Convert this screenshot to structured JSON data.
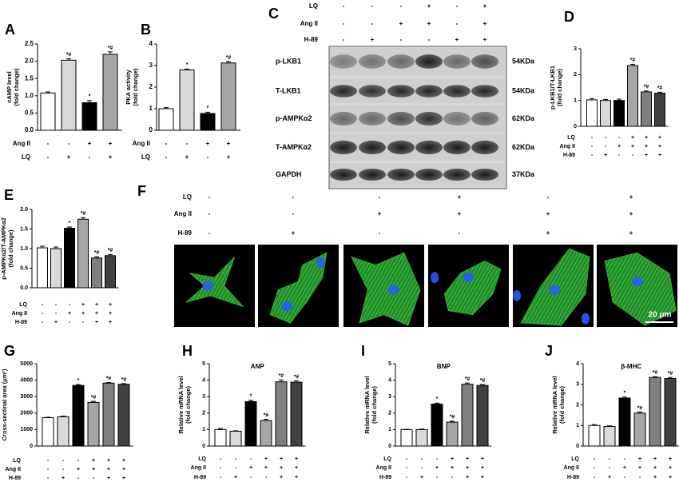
{
  "chart_data": [
    {
      "type": "bar",
      "panel": "A",
      "ylabel": [
        "cAMP level",
        "(fold change)"
      ],
      "ylim": [
        0,
        2.5
      ],
      "yticks": [
        {
          "value": 0,
          "label": "0.0"
        },
        0.5,
        {
          "value": 1,
          "label": "1.0"
        },
        1.5,
        {
          "value": 2,
          "label": "2.0"
        },
        2.5
      ],
      "values": [
        1.08,
        2.03,
        0.8,
        2.2
      ],
      "errors": [
        0.03,
        0.04,
        0.06,
        0.07
      ],
      "colors": [
        "#ffffff",
        "#d9d9d9",
        "#000000",
        "#a6a6a6"
      ],
      "significance": [
        null,
        "*#",
        "*",
        "*#"
      ],
      "conditions": [
        {
          "name": "Ang II",
          "signs": [
            "-",
            "-",
            "+",
            "+"
          ]
        },
        {
          "name": "LQ",
          "signs": [
            "-",
            "+",
            "-",
            "+"
          ]
        }
      ]
    },
    {
      "type": "bar",
      "panel": "B",
      "ylabel": [
        "PKA activity",
        "(fold change)"
      ],
      "ylim": [
        0,
        4
      ],
      "yticks": [
        0,
        1,
        2,
        3,
        4
      ],
      "values": [
        1.0,
        2.8,
        0.78,
        3.12
      ],
      "errors": [
        0.05,
        0.04,
        0.06,
        0.06
      ],
      "colors": [
        "#ffffff",
        "#d9d9d9",
        "#000000",
        "#a6a6a6"
      ],
      "significance": [
        null,
        "*",
        "*",
        "*#"
      ],
      "conditions": [
        {
          "name": "Ang II",
          "signs": [
            "-",
            "-",
            "+",
            "+"
          ]
        },
        {
          "name": "LQ",
          "signs": [
            "-",
            "+",
            "-",
            "+"
          ]
        }
      ]
    },
    {
      "type": "bar",
      "panel": "D",
      "ylabel": [
        "p-LKB1/T-LKB1",
        "(fold change)"
      ],
      "ylim": [
        0,
        3
      ],
      "yticks": [
        0,
        1,
        2,
        3
      ],
      "values": [
        1.02,
        1.0,
        1.0,
        2.35,
        1.33,
        1.28
      ],
      "errors": [
        0.05,
        0.04,
        0.05,
        0.05,
        0.04,
        0.04
      ],
      "colors": [
        "#ffffff",
        "#d9d9d9",
        "#000000",
        "#a6a6a6",
        "#7f7f7f",
        "#404040"
      ],
      "significance": [
        null,
        null,
        null,
        "*#",
        "*#",
        "*#"
      ],
      "conditions": [
        {
          "name": "LQ",
          "signs": [
            "-",
            "-",
            "-",
            "+",
            "+",
            "+"
          ]
        },
        {
          "name": "Ang II",
          "signs": [
            "-",
            "-",
            "+",
            "+",
            "+",
            "+"
          ]
        },
        {
          "name": "H-89",
          "signs": [
            "-",
            "+",
            "-",
            "-",
            "+",
            "+"
          ]
        }
      ]
    },
    {
      "type": "bar",
      "panel": "E",
      "ylabel": [
        "p-AMPKα2/T-AMPKα2",
        "(fold change)"
      ],
      "ylim": [
        0,
        2
      ],
      "yticks": [
        {
          "value": 0,
          "label": "0.0"
        },
        0.5,
        {
          "value": 1,
          "label": "1.0"
        },
        1.5,
        {
          "value": 2,
          "label": "2.0"
        }
      ],
      "values": [
        1.02,
        1.0,
        1.52,
        1.75,
        0.76,
        0.82
      ],
      "errors": [
        0.04,
        0.04,
        0.03,
        0.04,
        0.03,
        0.03
      ],
      "colors": [
        "#ffffff",
        "#d9d9d9",
        "#000000",
        "#a6a6a6",
        "#7f7f7f",
        "#404040"
      ],
      "significance": [
        null,
        null,
        "*",
        "*#",
        "*#",
        "*#"
      ],
      "conditions": [
        {
          "name": "LQ",
          "signs": [
            "-",
            "-",
            "-",
            "+",
            "+",
            "+"
          ]
        },
        {
          "name": "Ang II",
          "signs": [
            "-",
            "-",
            "+",
            "+",
            "+",
            "+"
          ]
        },
        {
          "name": "H-89",
          "signs": [
            "-",
            "+",
            "-",
            "-",
            "+",
            "+"
          ]
        }
      ]
    },
    {
      "type": "bar",
      "panel": "G",
      "ylabel": [
        "Cross-sectinal area (μm²)"
      ],
      "ylim": [
        0,
        5000
      ],
      "yticks": [
        0,
        1000,
        2000,
        3000,
        4000,
        5000
      ],
      "values": [
        1720,
        1780,
        3680,
        2650,
        3820,
        3750
      ],
      "errors": [
        30,
        40,
        60,
        60,
        40,
        40
      ],
      "colors": [
        "#ffffff",
        "#d9d9d9",
        "#000000",
        "#a6a6a6",
        "#7f7f7f",
        "#404040"
      ],
      "significance": [
        null,
        null,
        "*",
        "*#",
        "*#",
        "*#"
      ],
      "conditions": [
        {
          "name": "LQ",
          "signs": [
            "-",
            "-",
            "-",
            "+",
            "+",
            "+"
          ]
        },
        {
          "name": "Ang II",
          "signs": [
            "-",
            "-",
            "+",
            "+",
            "+",
            "+"
          ]
        },
        {
          "name": "H-89",
          "signs": [
            "-",
            "+",
            "-",
            "-",
            "+",
            "+"
          ]
        }
      ]
    },
    {
      "type": "bar",
      "panel": "H",
      "title": "ANP",
      "ylabel": [
        "Relative mRNA level",
        "(fold change)"
      ],
      "ylim": [
        0,
        5
      ],
      "yticks": [
        0,
        1,
        2,
        3,
        4,
        5
      ],
      "values": [
        1.0,
        0.9,
        2.7,
        1.55,
        3.9,
        3.88
      ],
      "errors": [
        0.06,
        0.03,
        0.08,
        0.07,
        0.12,
        0.08
      ],
      "colors": [
        "#ffffff",
        "#d9d9d9",
        "#000000",
        "#a6a6a6",
        "#7f7f7f",
        "#404040"
      ],
      "significance": [
        null,
        null,
        "*",
        "*#",
        "*#",
        "*#"
      ],
      "conditions": [
        {
          "name": "LQ",
          "signs": [
            "-",
            "-",
            "-",
            "+",
            "+",
            "+"
          ]
        },
        {
          "name": "Ang II",
          "signs": [
            "-",
            "-",
            "+",
            "+",
            "+",
            "+"
          ]
        },
        {
          "name": "H-89",
          "signs": [
            "-",
            "+",
            "-",
            "-",
            "+",
            "+"
          ]
        }
      ]
    },
    {
      "type": "bar",
      "panel": "I",
      "title": "BNP",
      "ylabel": [
        "Relative mRNA level",
        "(fold change)"
      ],
      "ylim": [
        0,
        5
      ],
      "yticks": [
        0,
        1,
        2,
        3,
        4,
        5
      ],
      "values": [
        1.0,
        1.0,
        2.55,
        1.45,
        3.75,
        3.68
      ],
      "errors": [
        0.02,
        0.03,
        0.06,
        0.06,
        0.07,
        0.06
      ],
      "colors": [
        "#ffffff",
        "#d9d9d9",
        "#000000",
        "#a6a6a6",
        "#7f7f7f",
        "#404040"
      ],
      "significance": [
        null,
        null,
        "*",
        "*#",
        "*#",
        "*#"
      ],
      "conditions": [
        {
          "name": "LQ",
          "signs": [
            "-",
            "-",
            "-",
            "+",
            "+",
            "+"
          ]
        },
        {
          "name": "Ang II",
          "signs": [
            "-",
            "-",
            "+",
            "+",
            "+",
            "+"
          ]
        },
        {
          "name": "H-89",
          "signs": [
            "-",
            "+",
            "-",
            "-",
            "+",
            "+"
          ]
        }
      ]
    },
    {
      "type": "bar",
      "panel": "J",
      "title": "β-MHC",
      "ylabel": [
        "Relative mRNA level",
        "(fold change)"
      ],
      "ylim": [
        0,
        4
      ],
      "yticks": [
        0,
        1,
        2,
        3,
        4
      ],
      "values": [
        1.0,
        0.95,
        2.33,
        1.6,
        3.33,
        3.28
      ],
      "errors": [
        0.04,
        0.03,
        0.05,
        0.05,
        0.04,
        0.05
      ],
      "colors": [
        "#ffffff",
        "#d9d9d9",
        "#000000",
        "#a6a6a6",
        "#7f7f7f",
        "#404040"
      ],
      "significance": [
        null,
        null,
        "*",
        "*#",
        "*#",
        "*#"
      ],
      "conditions": [
        {
          "name": "LQ",
          "signs": [
            "-",
            "-",
            "-",
            "+",
            "+",
            "+"
          ]
        },
        {
          "name": "Ang II",
          "signs": [
            "-",
            "-",
            "+",
            "+",
            "+",
            "+"
          ]
        },
        {
          "name": "H-89",
          "signs": [
            "-",
            "+",
            "-",
            "-",
            "+",
            "+"
          ]
        }
      ]
    }
  ],
  "blot": {
    "panel": "C",
    "conditions": [
      {
        "name": "LQ",
        "signs": [
          "-",
          "-",
          "-",
          "+",
          "-",
          "+"
        ]
      },
      {
        "name": "Ang II",
        "signs": [
          "-",
          "-",
          "+",
          "+",
          "-",
          "+"
        ]
      },
      {
        "name": "H-89",
        "signs": [
          "-",
          "+",
          "-",
          "-",
          "+",
          "+"
        ]
      }
    ],
    "rows": [
      {
        "label": "p-LKB1",
        "size": "54KDa"
      },
      {
        "label": "T-LKB1",
        "size": "54KDa"
      },
      {
        "label": "p-AMPKα2",
        "size": "62KDa"
      },
      {
        "label": "T-AMPKα2",
        "size": "62KDa"
      },
      {
        "label": "GAPDH",
        "size": "37KDa"
      }
    ]
  },
  "micrographs": {
    "panel": "F",
    "conditions": [
      {
        "name": "LQ",
        "signs": [
          "-",
          "-",
          "-",
          "+",
          "-",
          "+"
        ]
      },
      {
        "name": "Ang II",
        "signs": [
          "-",
          "-",
          "+",
          "+",
          "+",
          "+"
        ]
      },
      {
        "name": "H-89",
        "signs": [
          "-",
          "+",
          "-",
          "-",
          "+",
          "+"
        ]
      }
    ],
    "scale_bar": "20 μm"
  }
}
